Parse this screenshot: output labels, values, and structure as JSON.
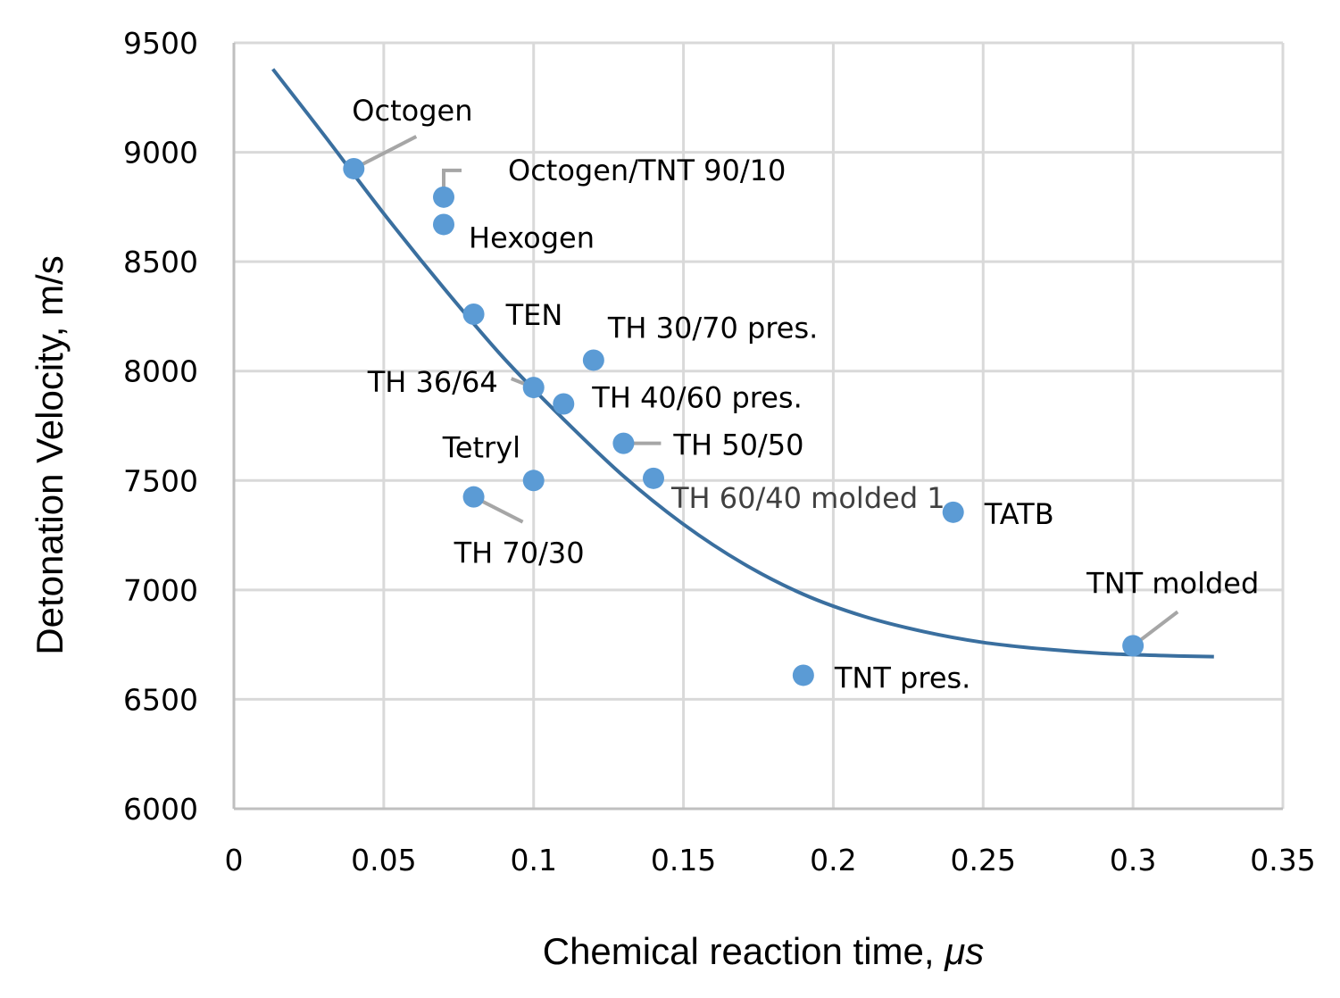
{
  "chart_data": {
    "type": "scatter",
    "title": "",
    "xlabel": "Chemical reaction time, ",
    "xlabel_unit": "μs",
    "ylabel": "Detonation Velocity, m/s",
    "xlim": [
      0,
      0.35
    ],
    "ylim": [
      6000,
      9500
    ],
    "x_ticks": [
      0,
      0.05,
      0.1,
      0.15,
      0.2,
      0.25,
      0.3,
      0.35
    ],
    "x_tick_labels": [
      "0",
      "0.05",
      "0.1",
      "0.15",
      "0.2",
      "0.25",
      "0.3",
      "0.35"
    ],
    "y_ticks": [
      6000,
      6500,
      7000,
      7500,
      8000,
      8500,
      9000,
      9500
    ],
    "y_tick_labels": [
      "6000",
      "6500",
      "7000",
      "7500",
      "8000",
      "8500",
      "9000",
      "9500"
    ],
    "grid": true,
    "legend": "none",
    "colors": {
      "point": "#5b9bd5",
      "trendline": "#3a6f9f",
      "grid": "#d9d9d9",
      "axis": "#bfbfbf",
      "leader": "#a6a6a6"
    },
    "points": [
      {
        "label": "Octogen",
        "x": 0.04,
        "y": 8925
      },
      {
        "label": "Octogen/TNT 90/10",
        "x": 0.07,
        "y": 8795
      },
      {
        "label": "Hexogen",
        "x": 0.07,
        "y": 8670
      },
      {
        "label": "TEN",
        "x": 0.08,
        "y": 8260
      },
      {
        "label": "TH 30/70 pres.",
        "x": 0.12,
        "y": 8050
      },
      {
        "label": "TH 36/64",
        "x": 0.1,
        "y": 7925
      },
      {
        "label": "TH 40/60 pres.",
        "x": 0.11,
        "y": 7850
      },
      {
        "label": "TH 50/50",
        "x": 0.13,
        "y": 7670
      },
      {
        "label": "Tetryl",
        "x": 0.1,
        "y": 7500
      },
      {
        "label": "TH 60/40 molded 1",
        "x": 0.14,
        "y": 7510
      },
      {
        "label": "TH 70/30",
        "x": 0.08,
        "y": 7425
      },
      {
        "label": "TATB",
        "x": 0.24,
        "y": 7355
      },
      {
        "label": "TNT molded",
        "x": 0.3,
        "y": 6745
      },
      {
        "label": "TNT pres.",
        "x": 0.19,
        "y": 6610
      }
    ],
    "trendline": {
      "type": "polynomial",
      "x": [
        0.013,
        0.03,
        0.05,
        0.07,
        0.09,
        0.11,
        0.13,
        0.15,
        0.17,
        0.19,
        0.21,
        0.23,
        0.25,
        0.27,
        0.29,
        0.31,
        0.327
      ],
      "y": [
        9380,
        9080,
        8720,
        8380,
        8060,
        7780,
        7520,
        7300,
        7120,
        6980,
        6880,
        6810,
        6760,
        6730,
        6710,
        6700,
        6695
      ]
    }
  }
}
